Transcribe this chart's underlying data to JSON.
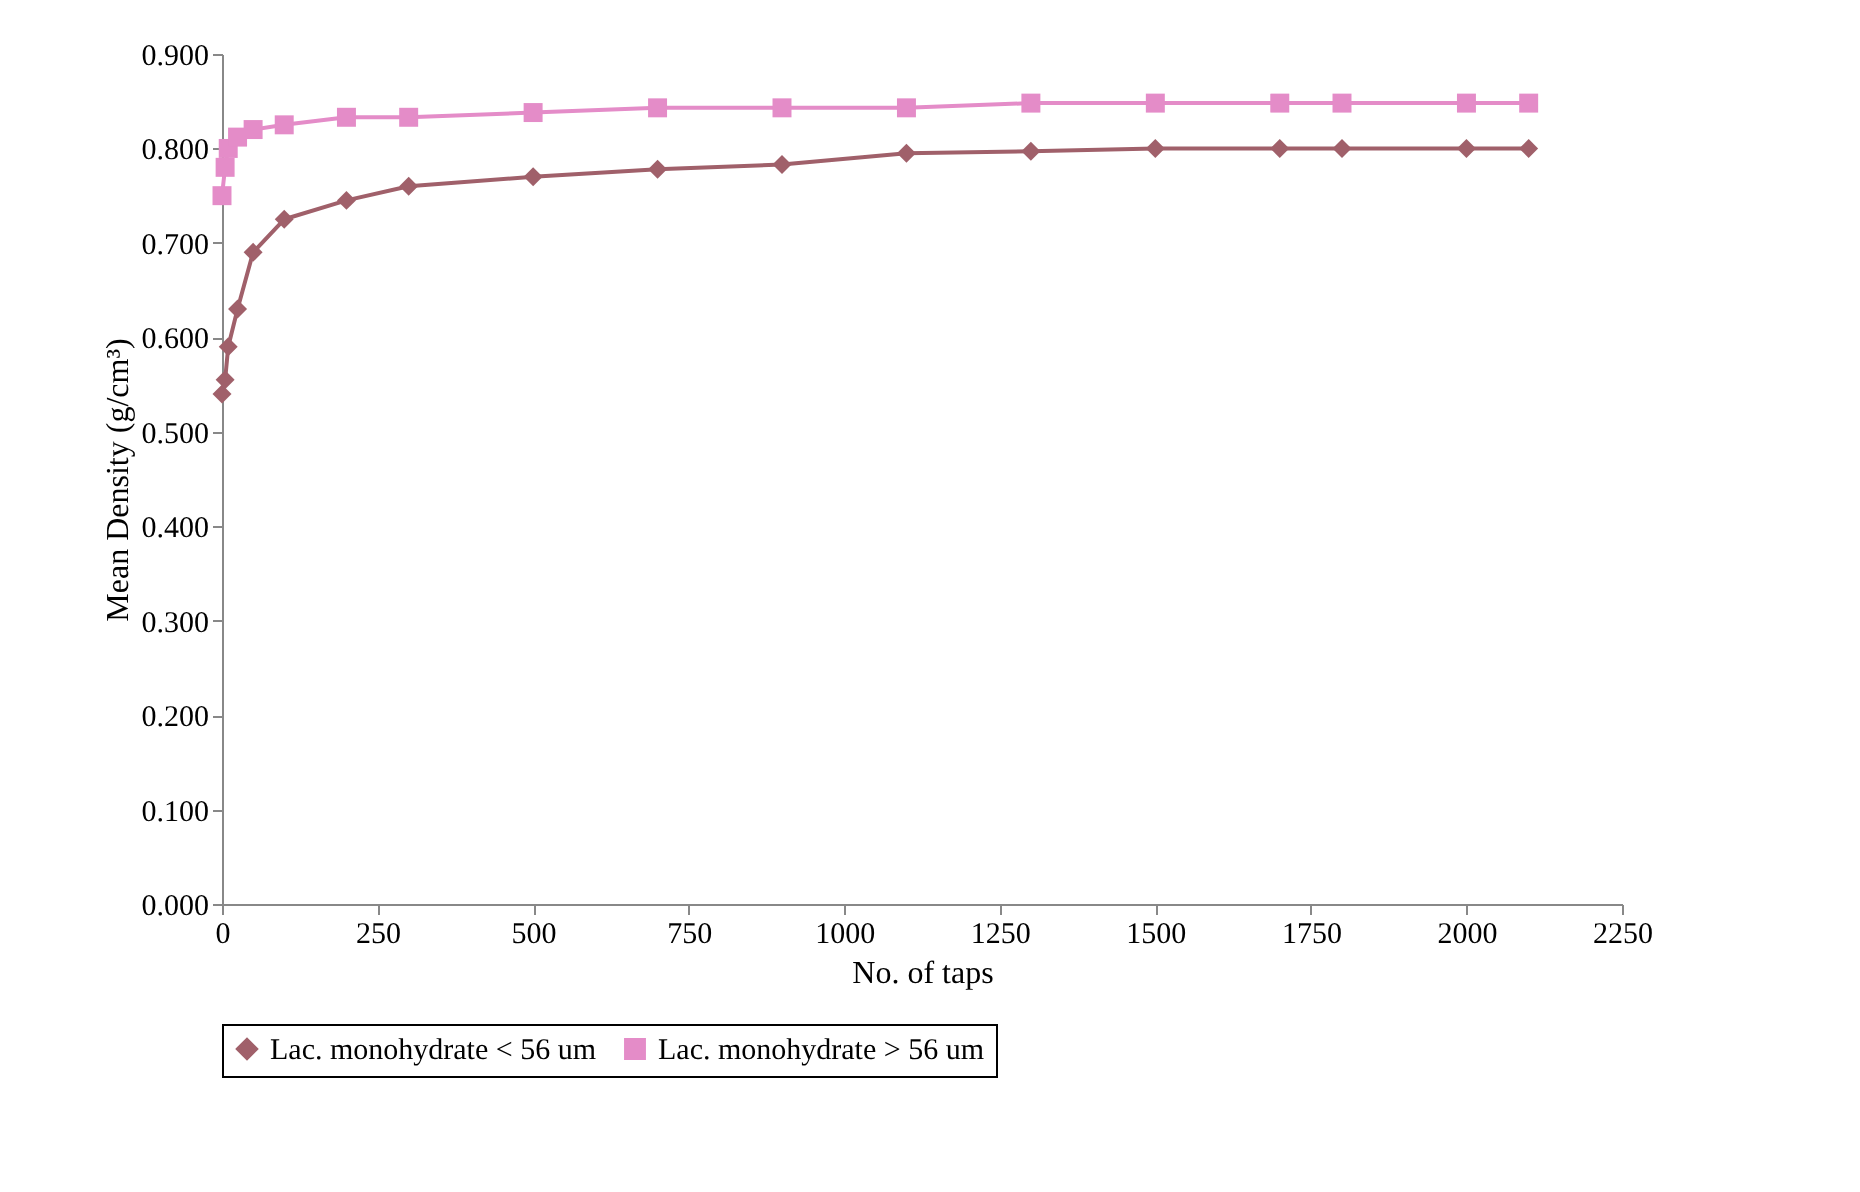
{
  "chart_data": {
    "type": "line",
    "xlabel": "No. of taps",
    "ylabel": "Mean Density (g/cm³)",
    "x": [
      0,
      5,
      10,
      25,
      50,
      100,
      200,
      300,
      500,
      700,
      900,
      1100,
      1300,
      1500,
      1700,
      1800,
      2000,
      2100
    ],
    "series": [
      {
        "name": "Lac. monohydrate < 56 um",
        "color": "#a0606a",
        "marker": "diamond",
        "values": [
          0.54,
          0.555,
          0.59,
          0.63,
          0.69,
          0.725,
          0.745,
          0.76,
          0.77,
          0.778,
          0.783,
          0.795,
          0.797,
          0.8,
          0.8,
          0.8,
          0.8,
          0.8
        ]
      },
      {
        "name": "Lac. monohydrate > 56 um",
        "color": "#e48cc8",
        "marker": "square",
        "values": [
          0.75,
          0.78,
          0.8,
          0.812,
          0.82,
          0.825,
          0.833,
          0.833,
          0.838,
          0.843,
          0.843,
          0.843,
          0.848,
          0.848,
          0.848,
          0.848,
          0.848,
          0.848
        ]
      }
    ],
    "xlim": [
      0,
      2250
    ],
    "xticks": [
      0,
      250,
      500,
      750,
      1000,
      1250,
      1500,
      1750,
      2000,
      2250
    ],
    "ylim": [
      0,
      0.9
    ],
    "yticks": [
      {
        "value": 0,
        "label": "0.000"
      },
      {
        "value": 0.1,
        "label": "0.100"
      },
      {
        "value": 0.2,
        "label": "0.200"
      },
      {
        "value": 0.3,
        "label": "0.300"
      },
      {
        "value": 0.4,
        "label": "0.400"
      },
      {
        "value": 0.5,
        "label": "0.500"
      },
      {
        "value": 0.6,
        "label": "0.600"
      },
      {
        "value": 0.7,
        "label": "0.700"
      },
      {
        "value": 0.8,
        "label": "0.800"
      },
      {
        "value": 0.9,
        "label": "0.900"
      }
    ],
    "grid": false,
    "legend": "bottom",
    "line_style": "solid"
  }
}
